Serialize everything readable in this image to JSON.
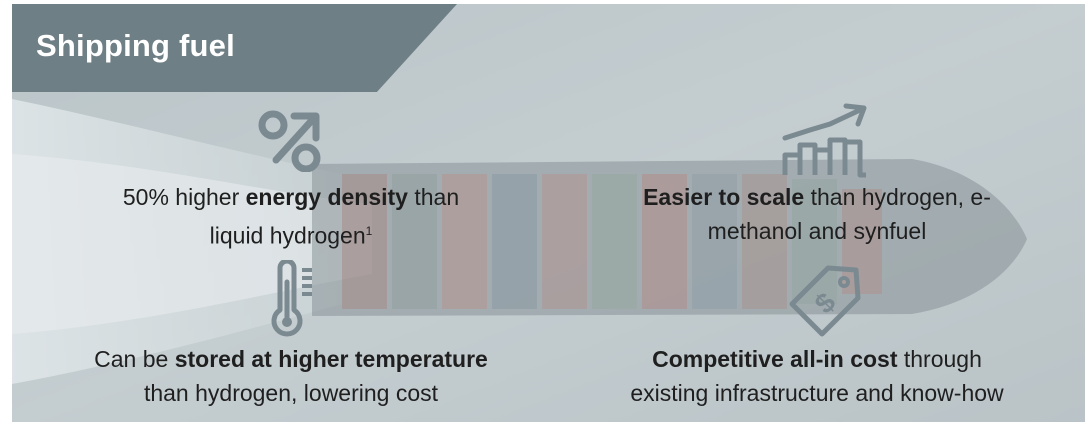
{
  "header": {
    "title": "Shipping fuel"
  },
  "colors": {
    "header_band": "#6f7f86",
    "icon_stroke": "#7b8a91",
    "text": "#1f1f1f",
    "background_overlay": "#b9c3c6"
  },
  "benefits": [
    {
      "icon": "percent-arrow-icon",
      "line1_pre": "50% higher ",
      "line1_bold": "energy density",
      "line1_post": " than",
      "line2_pre": "liquid hydrogen",
      "line2_bold": "",
      "line2_post": "",
      "footnote": "1"
    },
    {
      "icon": "growth-chart-icon",
      "line1_pre": "",
      "line1_bold": "Easier to scale",
      "line1_post": " than hydrogen, e-",
      "line2_pre": "methanol and synfuel",
      "line2_bold": "",
      "line2_post": "",
      "footnote": ""
    },
    {
      "icon": "thermometer-icon",
      "line1_pre": "Can be ",
      "line1_bold": "stored at higher temperature",
      "line1_post": "",
      "line2_pre": "than hydrogen, lowering cost",
      "line2_bold": "",
      "line2_post": "",
      "footnote": ""
    },
    {
      "icon": "price-tag-icon",
      "line1_pre": "",
      "line1_bold": "Competitive all-in cost",
      "line1_post": " through",
      "line2_pre": "existing infrastructure and know-how",
      "line2_bold": "",
      "line2_post": "",
      "footnote": ""
    }
  ]
}
